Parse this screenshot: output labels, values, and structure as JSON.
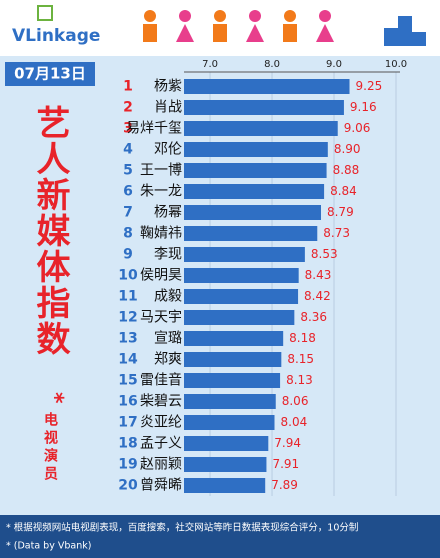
{
  "header": {
    "brand": "VLinkage",
    "date": "07月13日"
  },
  "side_title": "艺人新媒体指数",
  "side_subtitle": "电视演员",
  "side_mark": "*",
  "footnotes": [
    "* 根据视频网站电视剧表现，百度搜索，社交网站等昨日数据表现综合评分，10分制",
    "* (Data by Vbank)"
  ],
  "chart_data": {
    "type": "hbar",
    "ranks": [
      "1",
      "2",
      "3",
      "4",
      "5",
      "6",
      "7",
      "8",
      "9",
      "10",
      "11",
      "12",
      "13",
      "14",
      "15",
      "16",
      "17",
      "18",
      "19",
      "20"
    ],
    "categories": [
      "杨紫",
      "肖战",
      "易烊千玺",
      "邓伦",
      "王一博",
      "朱一龙",
      "杨幂",
      "鞠婧祎",
      "李现",
      "侯明昊",
      "成毅",
      "马天宇",
      "宣璐",
      "郑爽",
      "雷佳音",
      "柴碧云",
      "炎亚纶",
      "孟子义",
      "赵丽颖",
      "曾舜晞"
    ],
    "values": [
      9.25,
      9.16,
      9.06,
      8.9,
      8.88,
      8.84,
      8.79,
      8.73,
      8.53,
      8.43,
      8.42,
      8.36,
      8.18,
      8.15,
      8.13,
      8.06,
      8.04,
      7.94,
      7.91,
      7.89
    ],
    "value_labels": [
      "9.25",
      "9.16",
      "9.06",
      "8.90",
      "8.88",
      "8.84",
      "8.79",
      "8.73",
      "8.53",
      "8.43",
      "8.42",
      "8.36",
      "8.18",
      "8.15",
      "8.13",
      "8.06",
      "8.04",
      "7.94",
      "7.91",
      "7.89"
    ],
    "color": "#2f6fc4",
    "top_rank_color": "#e8232a",
    "rank_color": "#2f6fc4",
    "label_color": "#e8232a",
    "xlim": [
      6.58,
      10.0
    ],
    "xticks": [
      {
        "value": 7,
        "label": "7.0"
      },
      {
        "value": 8,
        "label": "8.0"
      },
      {
        "value": 9,
        "label": "9.0"
      },
      {
        "value": 10,
        "label": "10.0"
      }
    ],
    "grid": true
  }
}
